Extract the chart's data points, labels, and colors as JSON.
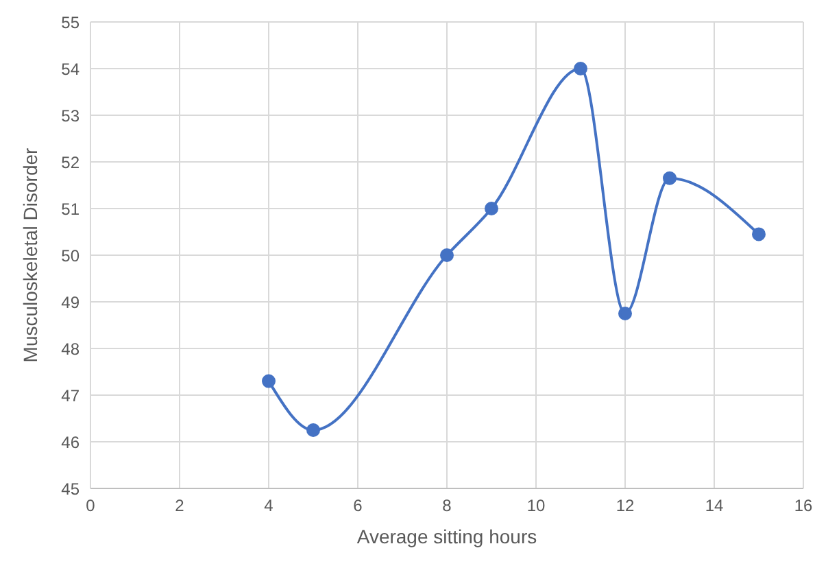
{
  "chart_data": {
    "type": "line",
    "xlabel": "Average sitting hours",
    "ylabel": "Musculoskeletal Disorder",
    "x": [
      4,
      5,
      8,
      9,
      11,
      12,
      13,
      15
    ],
    "series": [
      {
        "color": "#4472c4",
        "values": [
          47.3,
          46.25,
          50,
          51,
          54,
          48.75,
          51.65,
          50.45
        ]
      }
    ],
    "xlim": [
      0,
      16
    ],
    "xticks": [
      0,
      2,
      4,
      6,
      8,
      10,
      12,
      14,
      16
    ],
    "ylim": [
      45,
      55
    ],
    "yticks": [
      45,
      46,
      47,
      48,
      49,
      50,
      51,
      52,
      53,
      54,
      55
    ],
    "grid": true,
    "marker": "circle",
    "line_style": "solid"
  }
}
